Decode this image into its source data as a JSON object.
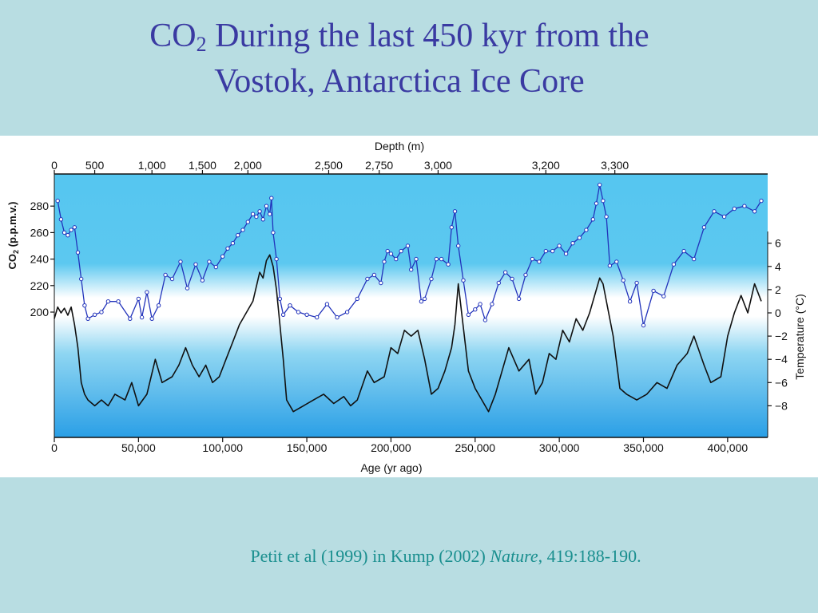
{
  "title": {
    "line1_prefix": "CO",
    "line1_sub": "2",
    "line1_rest": " During the last 450 kyr from the",
    "line2": "Vostok, Antarctica Ice Core"
  },
  "citation": {
    "prefix": "Petit et al (1999) in Kump (2002) ",
    "journal": "Nature",
    "suffix": ", 419:188-190."
  },
  "colors": {
    "co2_series": "#2233bb",
    "temp_series": "#111111",
    "sky": "#55c6f0",
    "title": "#3a3aa2",
    "citation": "#1a8f8f"
  },
  "chart_data": {
    "type": "line",
    "top_axis": {
      "label": "Depth (m)",
      "ticks": [
        {
          "label": "0",
          "age": 0
        },
        {
          "label": "500",
          "age": 24000
        },
        {
          "label": "1,000",
          "age": 58000
        },
        {
          "label": "1,500",
          "age": 88000
        },
        {
          "label": "2,000",
          "age": 115000
        },
        {
          "label": "2,500",
          "age": 163000
        },
        {
          "label": "2,750",
          "age": 193000
        },
        {
          "label": "3,000",
          "age": 228000
        },
        {
          "label": "3,200",
          "age": 292000
        },
        {
          "label": "3,300",
          "age": 333000
        }
      ]
    },
    "x_axis": {
      "label": "Age (yr ago)",
      "range": [
        0,
        420000
      ],
      "ticks": [
        {
          "v": 0,
          "label": "0"
        },
        {
          "v": 50000,
          "label": "50,000"
        },
        {
          "v": 100000,
          "label": "100,000"
        },
        {
          "v": 150000,
          "label": "150,000"
        },
        {
          "v": 200000,
          "label": "200,000"
        },
        {
          "v": 250000,
          "label": "250,000"
        },
        {
          "v": 300000,
          "label": "300,000"
        },
        {
          "v": 350000,
          "label": "350,000"
        },
        {
          "v": 400000,
          "label": "400,000"
        }
      ]
    },
    "y_left": {
      "label_prefix": "CO",
      "label_sub": "2",
      "label_suffix": " (p.p.m.v.)",
      "ticks": [
        {
          "v": 200,
          "label": "200"
        },
        {
          "v": 220,
          "label": "220"
        },
        {
          "v": 240,
          "label": "240"
        },
        {
          "v": 260,
          "label": "260"
        },
        {
          "v": 280,
          "label": "280"
        }
      ]
    },
    "y_right": {
      "label": "Temperature (°C)",
      "ticks": [
        {
          "v": -8,
          "label": "−8"
        },
        {
          "v": -6,
          "label": "−6"
        },
        {
          "v": -4,
          "label": "−4"
        },
        {
          "v": -2,
          "label": "−2"
        },
        {
          "v": 0,
          "label": "0"
        },
        {
          "v": 2,
          "label": "2"
        },
        {
          "v": 4,
          "label": "4"
        },
        {
          "v": 6,
          "label": "6"
        }
      ]
    },
    "series": [
      {
        "quantity": "CO2 (p.p.m.v.)",
        "x": [
          2000,
          4000,
          6000,
          8000,
          10000,
          12000,
          14000,
          16000,
          18000,
          20000,
          24000,
          28000,
          32000,
          38000,
          45000,
          50000,
          52000,
          55000,
          58000,
          62000,
          66000,
          70000,
          75000,
          79000,
          84000,
          88000,
          92000,
          96000,
          100000,
          103000,
          106000,
          109000,
          112000,
          115000,
          118000,
          120000,
          122000,
          124000,
          126000,
          128000,
          129000,
          130000,
          132000,
          134000,
          136000,
          140000,
          145000,
          150000,
          156000,
          162000,
          168000,
          174000,
          180000,
          186000,
          190000,
          194000,
          196000,
          198000,
          200000,
          203000,
          206000,
          210000,
          212000,
          215000,
          218000,
          220000,
          224000,
          227000,
          230000,
          234000,
          236000,
          238000,
          240000,
          243000,
          246000,
          250000,
          253000,
          256000,
          260000,
          264000,
          268000,
          272000,
          276000,
          280000,
          284000,
          288000,
          292000,
          296000,
          300000,
          304000,
          308000,
          312000,
          316000,
          320000,
          322000,
          324000,
          326000,
          328000,
          330000,
          334000,
          338000,
          342000,
          346000,
          350000,
          356000,
          362000,
          368000,
          374000,
          380000,
          386000,
          392000,
          398000,
          404000,
          410000,
          416000,
          420000
        ],
        "values": [
          284,
          270,
          260,
          258,
          262,
          264,
          245,
          225,
          205,
          195,
          198,
          200,
          208,
          208,
          195,
          210,
          196,
          215,
          195,
          205,
          228,
          225,
          238,
          218,
          236,
          224,
          238,
          234,
          242,
          248,
          252,
          258,
          262,
          268,
          274,
          272,
          276,
          270,
          280,
          274,
          286,
          260,
          240,
          210,
          198,
          205,
          200,
          198,
          196,
          206,
          196,
          200,
          210,
          225,
          228,
          222,
          238,
          246,
          244,
          240,
          246,
          250,
          232,
          240,
          208,
          210,
          225,
          240,
          240,
          236,
          264,
          276,
          250,
          224,
          198,
          202,
          206,
          194,
          206,
          222,
          230,
          225,
          210,
          228,
          240,
          238,
          246,
          246,
          250,
          244,
          252,
          256,
          262,
          270,
          282,
          296,
          284,
          272,
          235,
          238,
          224,
          208,
          222,
          190,
          216,
          212,
          236,
          246,
          240,
          264,
          276,
          272,
          278,
          280,
          276,
          284
        ]
      },
      {
        "quantity": "Temperature (°C)",
        "x": [
          0,
          2000,
          4000,
          6000,
          8000,
          10000,
          12000,
          14000,
          16000,
          18000,
          20000,
          24000,
          28000,
          32000,
          36000,
          42000,
          46000,
          50000,
          55000,
          60000,
          64000,
          70000,
          74000,
          78000,
          82000,
          86000,
          90000,
          94000,
          98000,
          102000,
          106000,
          110000,
          114000,
          118000,
          122000,
          124000,
          126000,
          128000,
          130000,
          132000,
          134000,
          136000,
          138000,
          142000,
          148000,
          154000,
          160000,
          166000,
          172000,
          176000,
          180000,
          186000,
          190000,
          196000,
          200000,
          204000,
          208000,
          212000,
          216000,
          220000,
          224000,
          228000,
          232000,
          236000,
          238000,
          240000,
          242000,
          246000,
          250000,
          254000,
          258000,
          262000,
          266000,
          270000,
          276000,
          282000,
          286000,
          290000,
          294000,
          298000,
          302000,
          306000,
          310000,
          314000,
          318000,
          322000,
          324000,
          326000,
          328000,
          332000,
          336000,
          340000,
          346000,
          352000,
          358000,
          364000,
          370000,
          376000,
          380000,
          386000,
          390000,
          396000,
          400000,
          404000,
          408000,
          412000,
          416000,
          420000
        ],
        "values": [
          -0.5,
          0.5,
          0.0,
          0.4,
          -0.2,
          0.5,
          -1.0,
          -3.0,
          -6.0,
          -7.0,
          -7.5,
          -8.0,
          -7.5,
          -8.0,
          -7.0,
          -7.5,
          -6.0,
          -8.0,
          -7.0,
          -4.0,
          -6.0,
          -5.5,
          -4.5,
          -3.0,
          -4.5,
          -5.5,
          -4.5,
          -6.0,
          -5.5,
          -4.0,
          -2.5,
          -1.0,
          0.0,
          1.0,
          3.5,
          3.0,
          4.5,
          5.0,
          4.0,
          2.0,
          -1.0,
          -4.0,
          -7.5,
          -8.5,
          -8.0,
          -7.5,
          -7.0,
          -7.8,
          -7.2,
          -8.0,
          -7.5,
          -5.0,
          -6.0,
          -5.5,
          -3.0,
          -3.5,
          -1.5,
          -2.0,
          -1.5,
          -4.0,
          -7.0,
          -6.5,
          -5.0,
          -3.0,
          -1.0,
          2.5,
          0.0,
          -5.0,
          -6.5,
          -7.5,
          -8.5,
          -7.0,
          -5.0,
          -3.0,
          -5.0,
          -4.0,
          -7.0,
          -6.0,
          -3.5,
          -4.0,
          -1.5,
          -2.5,
          -0.5,
          -1.5,
          0.0,
          2.0,
          3.0,
          2.5,
          1.0,
          -2.0,
          -6.5,
          -7.0,
          -7.5,
          -7.0,
          -6.0,
          -6.5,
          -4.5,
          -3.5,
          -2.0,
          -4.5,
          -6.0,
          -5.5,
          -2.0,
          0.0,
          1.5,
          0.0,
          2.5,
          1.0
        ]
      }
    ]
  }
}
